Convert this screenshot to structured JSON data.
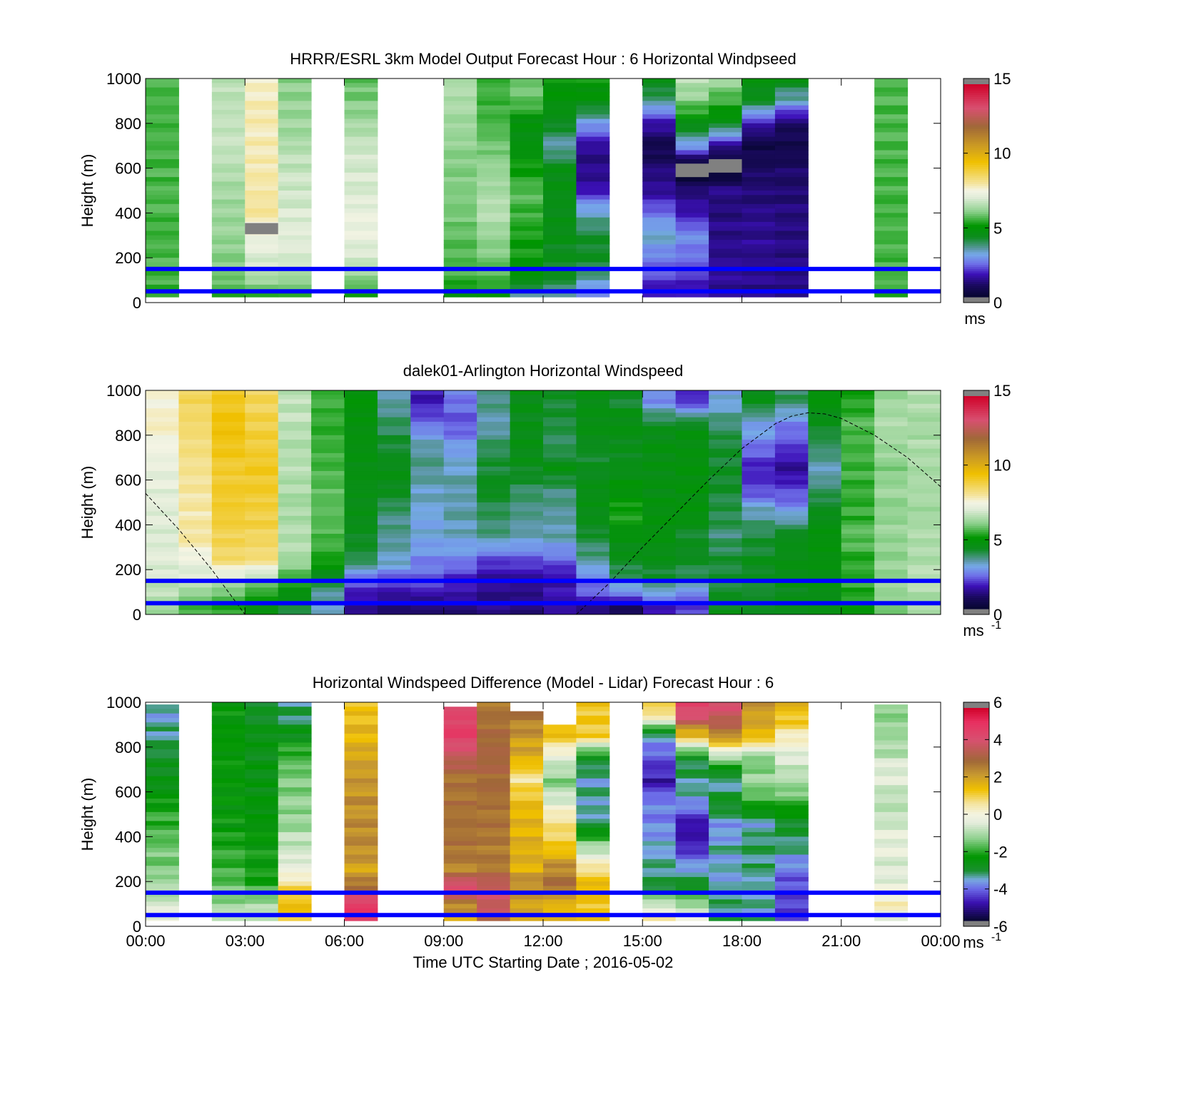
{
  "figure": {
    "xlabel": "Time UTC  Starting Date ; 2016-05-02",
    "xticks": [
      "00:00",
      "03:00",
      "06:00",
      "09:00",
      "12:00",
      "15:00",
      "18:00",
      "21:00",
      "00:00"
    ],
    "colors": {
      "overlay_lines": "#0000ff",
      "missing": "#808080"
    }
  },
  "chart_data": [
    {
      "type": "heatmap",
      "title": "HRRR/ESRL 3km Model Output   Forecast Hour : 6 Horizontal Windpseed",
      "xlabel": "",
      "ylabel": "Height (m)",
      "xlim": [
        0,
        24
      ],
      "ylim": [
        0,
        1000
      ],
      "yticks": [
        0,
        200,
        400,
        600,
        800,
        1000
      ],
      "colorbar": {
        "ticks": [
          "0",
          "5",
          "10",
          "15"
        ],
        "unit": "ms",
        "unit_sup": "",
        "range": [
          0,
          15
        ]
      },
      "lines_height_m": [
        150,
        50
      ],
      "hours": [
        0.5,
        2.5,
        3.5,
        4.5,
        6.5,
        9.5,
        10.5,
        11.5,
        12.5,
        13.5,
        15.5,
        16.5,
        17.5,
        18.5,
        19.5,
        22.5
      ],
      "heights_m": [
        1000,
        900,
        800,
        700,
        600,
        500,
        400,
        300,
        200,
        100,
        50
      ],
      "values": [
        [
          5.5,
          6.5,
          7.7,
          6.0,
          5.7,
          6.5,
          5.5,
          5.8,
          5.0,
          5.0,
          4.6,
          6.6,
          6.3,
          4.6,
          4.6,
          5.5
        ],
        [
          5.5,
          6.6,
          7.8,
          6.1,
          5.9,
          6.4,
          5.4,
          5.7,
          4.8,
          4.6,
          3.6,
          6.0,
          5.4,
          4.3,
          3.2,
          5.5
        ],
        [
          5.5,
          6.7,
          7.8,
          6.2,
          6.3,
          6.2,
          5.5,
          4.6,
          4.3,
          2.9,
          1.5,
          4.6,
          4.4,
          1.5,
          0.8,
          5.5
        ],
        [
          5.5,
          6.7,
          7.8,
          6.4,
          6.7,
          6.1,
          5.8,
          4.6,
          3.2,
          1.3,
          0.4,
          2.9,
          1.4,
          0.4,
          0.5,
          5.5
        ],
        [
          5.5,
          6.5,
          7.9,
          6.6,
          6.9,
          5.9,
          6.1,
          5.0,
          4.5,
          1.1,
          1.0,
          -0.5,
          -0.5,
          0.7,
          0.8,
          5.5
        ],
        [
          5.5,
          6.3,
          7.9,
          6.8,
          7.0,
          5.9,
          6.3,
          5.6,
          4.4,
          1.6,
          1.3,
          1.0,
          1.2,
          1.0,
          1.0,
          5.5
        ],
        [
          5.5,
          6.2,
          8.0,
          6.9,
          7.2,
          5.8,
          6.5,
          5.4,
          4.4,
          3.2,
          2.3,
          1.5,
          1.1,
          1.2,
          1.1,
          5.5
        ],
        [
          5.5,
          6.1,
          7.4,
          7.1,
          7.2,
          5.7,
          6.1,
          5.2,
          4.4,
          4.1,
          3.2,
          2.7,
          1.2,
          1.3,
          1.1,
          5.5
        ],
        [
          5.5,
          6.0,
          7.0,
          7.0,
          6.9,
          5.6,
          5.9,
          5.0,
          4.3,
          4.2,
          2.5,
          2.3,
          1.3,
          1.2,
          1.1,
          5.5
        ],
        [
          5.5,
          5.8,
          6.3,
          6.2,
          6.0,
          5.4,
          5.6,
          4.7,
          4.2,
          3.3,
          1.9,
          1.8,
          1.3,
          1.2,
          1.1,
          5.5
        ],
        [
          5.2,
          5.3,
          5.4,
          5.4,
          5.3,
          4.8,
          5.0,
          3.6,
          3.4,
          2.6,
          1.6,
          1.6,
          1.3,
          1.2,
          1.1,
          5.3
        ]
      ],
      "missing_cells": [
        {
          "hour": 3.5,
          "height_m": 330
        }
      ]
    },
    {
      "type": "heatmap",
      "title": "dalek01-Arlington  Horizontal Windspeed",
      "xlabel": "",
      "ylabel": "Height (m)",
      "xlim": [
        0,
        24
      ],
      "ylim": [
        0,
        1000
      ],
      "yticks": [
        0,
        200,
        400,
        600,
        800,
        1000
      ],
      "colorbar": {
        "ticks": [
          "0",
          "5",
          "10",
          "15"
        ],
        "unit": "ms",
        "unit_sup": "-1",
        "range": [
          0,
          15
        ]
      },
      "lines_height_m": [
        150,
        50
      ],
      "hours": [
        0.5,
        1.5,
        2.5,
        3.5,
        4.5,
        5.5,
        6.5,
        7.5,
        8.5,
        9.5,
        10.5,
        11.5,
        12.5,
        13.5,
        14.5,
        15.5,
        16.5,
        17.5,
        18.5,
        19.5,
        20.5,
        21.5,
        22.5,
        23.5
      ],
      "heights_m": [
        950,
        850,
        750,
        650,
        550,
        450,
        350,
        250,
        150,
        75,
        25
      ],
      "values": [
        [
          7.5,
          8.6,
          9.2,
          8.6,
          6.6,
          5.5,
          4.8,
          3.3,
          1.6,
          2.4,
          3.6,
          4.4,
          4.1,
          4.5,
          4.2,
          2.6,
          1.8,
          3.0,
          4.4,
          3.8,
          4.7,
          5.2,
          6.2,
          6.5
        ],
        [
          7.8,
          8.5,
          9.4,
          8.8,
          6.6,
          5.3,
          4.6,
          3.8,
          2.4,
          2.0,
          3.3,
          4.4,
          4.0,
          4.5,
          4.6,
          4.2,
          4.4,
          3.8,
          3.0,
          2.4,
          4.3,
          5.6,
          6.4,
          6.3
        ],
        [
          7.4,
          8.3,
          9.3,
          9.0,
          6.4,
          5.4,
          4.6,
          4.1,
          3.3,
          2.8,
          3.8,
          4.5,
          3.8,
          4.2,
          4.3,
          4.5,
          4.7,
          4.0,
          2.4,
          2.0,
          3.8,
          5.5,
          6.2,
          6.4
        ],
        [
          7.2,
          8.1,
          9.0,
          9.1,
          6.5,
          5.5,
          4.5,
          4.4,
          3.6,
          3.2,
          4.1,
          4.3,
          4.6,
          4.2,
          4.4,
          4.5,
          4.6,
          4.2,
          1.6,
          1.2,
          3.2,
          5.4,
          6.0,
          6.3
        ],
        [
          7.1,
          8.0,
          9.1,
          9.0,
          6.4,
          5.6,
          4.4,
          4.3,
          3.2,
          3.4,
          4.3,
          3.8,
          3.5,
          4.4,
          4.8,
          4.5,
          4.6,
          4.0,
          2.0,
          2.0,
          3.8,
          5.4,
          6.2,
          6.4
        ],
        [
          7.0,
          7.9,
          9.0,
          8.9,
          6.4,
          5.6,
          4.4,
          3.6,
          3.0,
          3.3,
          3.8,
          3.5,
          3.5,
          4.5,
          5.3,
          4.7,
          4.7,
          4.0,
          3.4,
          3.0,
          4.3,
          5.3,
          6.1,
          6.3
        ],
        [
          7.0,
          8.0,
          8.7,
          8.6,
          6.4,
          5.5,
          4.2,
          3.5,
          3.0,
          3.2,
          3.5,
          3.3,
          3.3,
          4.1,
          4.6,
          4.6,
          4.2,
          3.6,
          4.0,
          4.3,
          4.7,
          5.6,
          6.2,
          6.4
        ],
        [
          7.1,
          7.3,
          8.5,
          8.4,
          6.4,
          5.3,
          4.0,
          3.3,
          2.6,
          2.6,
          2.1,
          2.2,
          2.4,
          3.5,
          4.3,
          4.4,
          4.2,
          4.0,
          4.3,
          4.5,
          4.6,
          5.3,
          6.0,
          6.3
        ],
        [
          6.7,
          6.9,
          6.6,
          6.2,
          5.3,
          4.0,
          2.3,
          2.0,
          2.2,
          1.5,
          1.2,
          1.1,
          1.3,
          2.4,
          3.6,
          4.0,
          3.8,
          4.1,
          4.3,
          4.4,
          4.6,
          5.4,
          6.2,
          6.6
        ],
        [
          6.5,
          5.8,
          5.5,
          5.0,
          4.5,
          3.3,
          1.5,
          1.3,
          1.3,
          1.5,
          1.2,
          1.3,
          1.7,
          2.0,
          2.0,
          2.5,
          2.2,
          4.2,
          4.0,
          4.3,
          4.4,
          5.2,
          6.1,
          6.4
        ],
        [
          6.1,
          5.4,
          5.2,
          4.6,
          4.2,
          3.3,
          1.3,
          1.1,
          1.0,
          1.0,
          1.3,
          1.0,
          1.3,
          0.9,
          0.5,
          1.5,
          2.0,
          4.4,
          4.2,
          4.4,
          4.5,
          5.0,
          6.0,
          6.3
        ]
      ],
      "boundary_layer_curve": {
        "hours": [
          0.0,
          0.5,
          1.0,
          1.5,
          2.0,
          2.5,
          3.0,
          13.0,
          14.0,
          15.0,
          16.0,
          17.0,
          18.0,
          19.0,
          19.5,
          20.0,
          20.5,
          21.0,
          22.0,
          23.0,
          24.0
        ],
        "heights_m": [
          540,
          460,
          380,
          290,
          200,
          100,
          0,
          0,
          140,
          300,
          450,
          600,
          740,
          850,
          885,
          900,
          895,
          875,
          800,
          700,
          570
        ]
      }
    },
    {
      "type": "heatmap",
      "title": "Horizontal Windspeed Difference (Model - Lidar) Forecast Hour : 6",
      "xlabel": "Time UTC  Starting Date ; 2016-05-02",
      "ylabel": "Height (m)",
      "xlim": [
        0,
        24
      ],
      "ylim": [
        0,
        1000
      ],
      "yticks": [
        0,
        200,
        400,
        600,
        800,
        1000
      ],
      "colorbar": {
        "ticks": [
          "-6",
          "-4",
          "-2",
          "0",
          "2",
          "4",
          "6"
        ],
        "unit": "ms",
        "unit_sup": "-1",
        "range": [
          -6,
          6
        ]
      },
      "lines_height_m": [
        150,
        50
      ],
      "hours": [
        0.5,
        2.5,
        3.5,
        4.5,
        6.5,
        9.5,
        10.5,
        11.5,
        12.5,
        13.5,
        15.5,
        16.5,
        17.5,
        18.5,
        19.5,
        22.5
      ],
      "heights_m": [
        950,
        850,
        750,
        650,
        550,
        450,
        350,
        250,
        175,
        100,
        50
      ],
      "values": [
        [
          -3.6,
          -2.5,
          -3.0,
          -3.4,
          1.4,
          4.5,
          2.8,
          2.8,
          1.8,
          1.2,
          1.0,
          4.5,
          4.0,
          2.2,
          1.6,
          -1.5
        ],
        [
          -3.4,
          -2.4,
          -2.8,
          -2.8,
          1.6,
          4.8,
          3.0,
          2.2,
          1.5,
          1.1,
          -3.5,
          1.5,
          2.5,
          1.6,
          0.4,
          -1.2
        ],
        [
          -3.0,
          -2.4,
          -2.8,
          -1.8,
          2.0,
          3.6,
          3.2,
          1.8,
          -0.6,
          -3.0,
          -4.5,
          -3.0,
          -1.2,
          -1.6,
          -0.6,
          -0.8
        ],
        [
          -2.8,
          -2.5,
          -2.7,
          -1.6,
          2.2,
          2.8,
          3.0,
          0.5,
          -1.4,
          -3.6,
          -5.0,
          -3.4,
          -3.6,
          -1.2,
          -1.0,
          -0.4
        ],
        [
          -2.4,
          -2.5,
          -2.6,
          -1.4,
          2.4,
          2.8,
          2.8,
          1.5,
          -0.4,
          -3.5,
          -4.0,
          -3.8,
          -3.0,
          -2.2,
          -2.0,
          -1.0
        ],
        [
          -2.0,
          -2.4,
          -2.6,
          -1.2,
          2.5,
          2.8,
          2.8,
          1.6,
          0.8,
          -3.4,
          -4.0,
          -5.2,
          -3.8,
          -3.6,
          -3.0,
          -0.6
        ],
        [
          -1.6,
          -2.2,
          -2.4,
          -0.8,
          2.3,
          2.8,
          2.6,
          1.8,
          1.2,
          -1.0,
          -3.8,
          -4.8,
          -3.6,
          -3.2,
          -3.4,
          -0.2
        ],
        [
          -1.4,
          -2.0,
          -2.4,
          -0.2,
          2.0,
          2.6,
          2.8,
          1.8,
          2.6,
          0.8,
          -3.4,
          -3.6,
          -3.6,
          -3.4,
          -4.2,
          -0.6
        ],
        [
          -1.0,
          -1.6,
          -2.0,
          1.0,
          3.0,
          4.6,
          4.0,
          2.5,
          3.0,
          1.5,
          -3.2,
          -3.0,
          -3.6,
          -3.6,
          -4.5,
          -0.4
        ],
        [
          -0.8,
          -1.4,
          -1.2,
          1.5,
          5.0,
          2.6,
          4.0,
          2.0,
          1.6,
          1.2,
          -0.8,
          -1.2,
          -3.4,
          -3.6,
          -4.6,
          0.4
        ],
        [
          -0.4,
          -0.8,
          -0.8,
          1.2,
          5.0,
          2.0,
          3.5,
          2.2,
          1.8,
          1.6,
          0.6,
          -0.2,
          -3.2,
          -3.4,
          -4.6,
          -0.6
        ]
      ],
      "column_top_m": [
        990,
        1000,
        1000,
        1000,
        1000,
        980,
        1000,
        960,
        900,
        1000,
        1000,
        1000,
        1000,
        1000,
        1000,
        990
      ],
      "column_bottom_m": [
        25,
        25,
        25,
        25,
        25,
        25,
        25,
        25,
        25,
        25,
        25,
        25,
        25,
        25,
        25,
        25
      ]
    }
  ]
}
